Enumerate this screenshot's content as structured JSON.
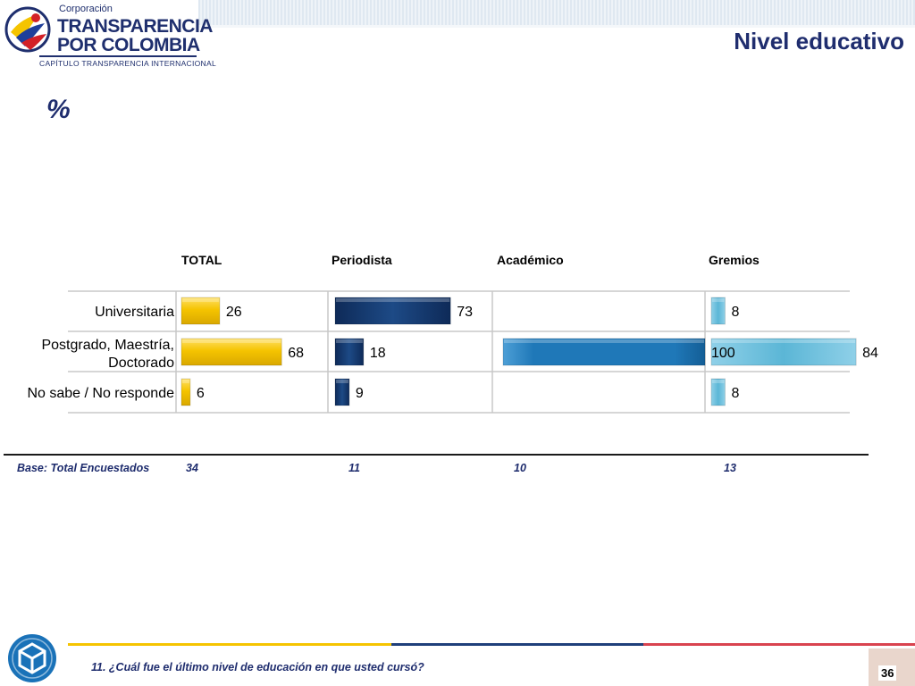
{
  "logo": {
    "corp": "Corporación",
    "line1": "TRANSPARENCIA",
    "line2": "POR COLOMBIA",
    "sub": "CAPÍTULO TRANSPARENCIA INTERNACIONAL"
  },
  "header": {
    "title": "Nivel educativo"
  },
  "unit_label": "%",
  "colors": {
    "total": "#f5c400",
    "periodista": "#17366a",
    "academico": "#1f78b8",
    "gremios": "#5bb6d6",
    "title": "#1f2d6e"
  },
  "chart_data": {
    "type": "bar",
    "orientation": "horizontal",
    "title": "Nivel educativo",
    "unit": "%",
    "categories": [
      "Universitaria",
      "Postgrado, Maestría, Doctorado",
      "No sabe / No responde"
    ],
    "category_lines": [
      [
        "Universitaria"
      ],
      [
        "Postgrado, Maestría,",
        "Doctorado"
      ],
      [
        "No sabe / No responde"
      ]
    ],
    "series": [
      {
        "name": "TOTAL",
        "values": [
          26,
          68,
          6
        ]
      },
      {
        "name": "Periodista",
        "values": [
          73,
          18,
          9
        ]
      },
      {
        "name": "Académico",
        "values": [
          null,
          100,
          null
        ]
      },
      {
        "name": "Gremios",
        "values": [
          8,
          84,
          8
        ]
      }
    ],
    "xlim": [
      0,
      100
    ],
    "grid": false,
    "legend": "column headers"
  },
  "base": {
    "label": "Base: Total Encuestados",
    "values": [
      "34",
      "11",
      "10",
      "13"
    ]
  },
  "footer": {
    "question": "11. ¿Cuál fue el último nivel de educación en que usted cursó?",
    "page_number": "36"
  }
}
